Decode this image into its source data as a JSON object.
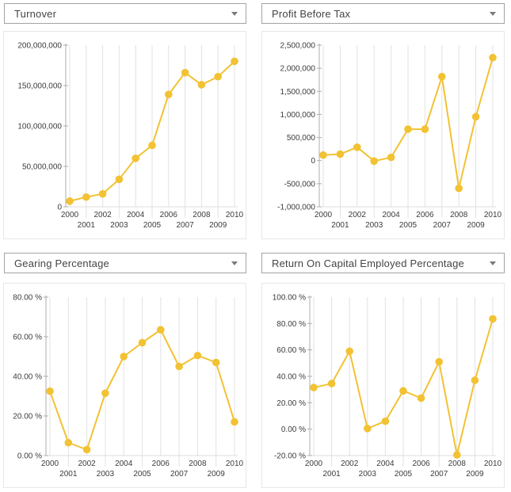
{
  "colors": {
    "series": "#F2C233",
    "grid": "#E2E2E2",
    "axis": "#ADADAD",
    "baseline": "#DDDDDD",
    "label": "#3C3C3C"
  },
  "chart_data": [
    {
      "id": "turnover",
      "title": "Turnover",
      "type": "line",
      "x": [
        2000,
        2001,
        2002,
        2003,
        2004,
        2005,
        2006,
        2007,
        2008,
        2009,
        2010
      ],
      "values": [
        7000000,
        12000000,
        16000000,
        34000000,
        60000000,
        76000000,
        139000000,
        166000000,
        151000000,
        161000000,
        180000000
      ],
      "xlabel": "",
      "ylabel": "",
      "ylim": [
        0,
        200000000
      ],
      "ytick": 50000000,
      "yformat": "number",
      "grid": "vertical",
      "legend": "none"
    },
    {
      "id": "profit-before-tax",
      "title": "Profit Before Tax",
      "type": "line",
      "x": [
        2000,
        2001,
        2002,
        2003,
        2004,
        2005,
        2006,
        2007,
        2008,
        2009,
        2010
      ],
      "values": [
        120000,
        140000,
        290000,
        -10000,
        70000,
        680000,
        680000,
        1820000,
        -600000,
        950000,
        2230000
      ],
      "xlabel": "",
      "ylabel": "",
      "ylim": [
        -1000000,
        2500000
      ],
      "ytick": 500000,
      "yformat": "number",
      "grid": "vertical",
      "legend": "none"
    },
    {
      "id": "gearing-percentage",
      "title": "Gearing Percentage",
      "type": "line",
      "x": [
        2000,
        2001,
        2002,
        2003,
        2004,
        2005,
        2006,
        2007,
        2008,
        2009,
        2010
      ],
      "values": [
        32.5,
        6.5,
        3.0,
        31.5,
        50.0,
        57.0,
        63.5,
        45.0,
        50.5,
        47.0,
        17.0
      ],
      "xlabel": "",
      "ylabel": "",
      "ylim": [
        0,
        80
      ],
      "ytick": 20,
      "yformat": "percent",
      "grid": "vertical",
      "legend": "none"
    },
    {
      "id": "return-on-capital-employed-percentage",
      "title": "Return On Capital Employed Percentage",
      "type": "line",
      "x": [
        2000,
        2001,
        2002,
        2003,
        2004,
        2005,
        2006,
        2007,
        2008,
        2009,
        2010
      ],
      "values": [
        31.5,
        34.5,
        59.0,
        0.5,
        6.0,
        29.0,
        23.5,
        51.0,
        -19.5,
        37.0,
        83.5
      ],
      "xlabel": "",
      "ylabel": "",
      "ylim": [
        -20,
        100
      ],
      "ytick": 20,
      "yformat": "percent",
      "grid": "vertical",
      "legend": "none"
    }
  ]
}
